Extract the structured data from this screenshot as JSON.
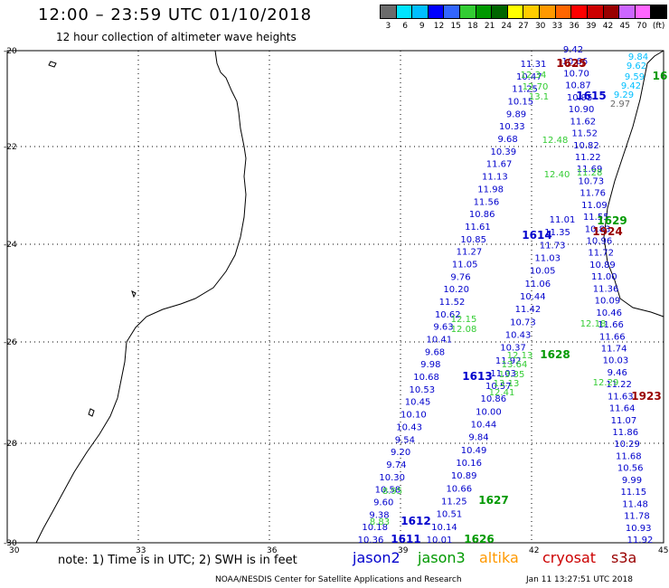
{
  "header": {
    "title": "12:00 – 23:59 UTC 01/10/2018",
    "subtitle": "12 hour collection of altimeter wave heights"
  },
  "legend": {
    "colors": [
      "#6b6b6b",
      "#00e5ff",
      "#00bfff",
      "#0000ff",
      "#3366ff",
      "#33cc33",
      "#009900",
      "#006600",
      "#ffff00",
      "#ffcc00",
      "#ff9900",
      "#ff6600",
      "#ff0000",
      "#cc0000",
      "#990000",
      "#cc66ff",
      "#ff66ff",
      "#000000"
    ],
    "labels": [
      "3",
      "6",
      "9",
      "12",
      "15",
      "18",
      "21",
      "24",
      "27",
      "30",
      "33",
      "36",
      "39",
      "42",
      "45",
      "70",
      "(ft)"
    ]
  },
  "axes": {
    "lat_labels": [
      "-20",
      "-22",
      "-24",
      "-26",
      "-28",
      "-30"
    ],
    "lon_labels": [
      "30",
      "33",
      "36",
      "39",
      "42",
      "45"
    ]
  },
  "tracks": {
    "jason2_a": [
      "9.42",
      "10.66",
      "10.70",
      "10.87",
      "10.95",
      "10.90",
      "11.62",
      "11.52",
      "10.82",
      "11.22",
      "11.69",
      "10.73",
      "11.76",
      "11.09",
      "11.55",
      "10.83",
      "10.96",
      "11.72",
      "10.89",
      "11.00",
      "11.36",
      "10.09",
      "10.46",
      "11.66",
      "11.66",
      "11.74",
      "10.03",
      "9.46",
      "11.22",
      "11.63",
      "11.64",
      "11.07",
      "11.86",
      "10.29",
      "11.68",
      "10.56",
      "9.99",
      "11.15",
      "11.48",
      "11.78",
      "10.93",
      "11.92"
    ],
    "jason2_b": [
      "11.31",
      "10.47",
      "11.25",
      "10.15",
      "9.89",
      "10.33",
      "9.68",
      "10.39",
      "11.67",
      "11.13",
      "11.98",
      "11.56",
      "10.86",
      "11.61",
      "10.85",
      "11.27",
      "11.05",
      "9.76",
      "10.20",
      "11.52",
      "10.62",
      "9.63",
      "10.41",
      "9.68",
      "9.98",
      "10.68",
      "10.53",
      "10.45",
      "10.10",
      "10.43",
      "9.54",
      "9.20",
      "9.74",
      "10.30",
      "10.58",
      "9.60",
      "9.38",
      "10.18",
      "10.36"
    ],
    "jason2_c": [
      "11.01",
      "11.35",
      "11.73",
      "11.03",
      "10.05",
      "11.06",
      "10.44",
      "11.42",
      "10.73",
      "10.43",
      "10.37",
      "11.92",
      "11.03",
      "10.57",
      "10.86",
      "10.00",
      "10.44",
      "9.84",
      "10.49",
      "10.16",
      "10.89",
      "10.66",
      "11.25",
      "10.51",
      "10.14",
      "10.01"
    ],
    "jason3": [
      "12.34",
      "12.70",
      "13.1",
      "12.48",
      "12.40",
      "11.28",
      "12.15",
      "12.08",
      "12.13",
      "13.64",
      "13.35",
      "13.13",
      "12.41",
      "12.18",
      "12.29",
      "8.95",
      "8.83"
    ],
    "cryosat": [
      "10.35"
    ],
    "cyan_values": [
      "9.84",
      "9.62",
      "9.59",
      "9.42",
      "9.29",
      "2.97"
    ],
    "pass_ids_jason2": [
      "1615",
      "1614",
      "1613",
      "1612",
      "1611"
    ],
    "pass_ids_jason3": [
      "1629",
      "1628",
      "1627",
      "1626",
      "16"
    ],
    "pass_ids_cryosat": [
      "1625",
      "1924",
      "1923"
    ]
  },
  "footer": {
    "note": "note: 1) Time is in UTC; 2) SWH is in feet",
    "satellites": [
      {
        "name": "jason2",
        "color": "#0000cc"
      },
      {
        "name": "jason3",
        "color": "#009900"
      },
      {
        "name": "altika",
        "color": "#ff9900"
      },
      {
        "name": "cryosat",
        "color": "#cc0000"
      },
      {
        "name": "s3a",
        "color": "#990000"
      }
    ],
    "credit": "NOAA/NESDIS Center for Satellite Applications and Research",
    "timestamp": "Jan 11 13:27:51 UTC 2018"
  }
}
